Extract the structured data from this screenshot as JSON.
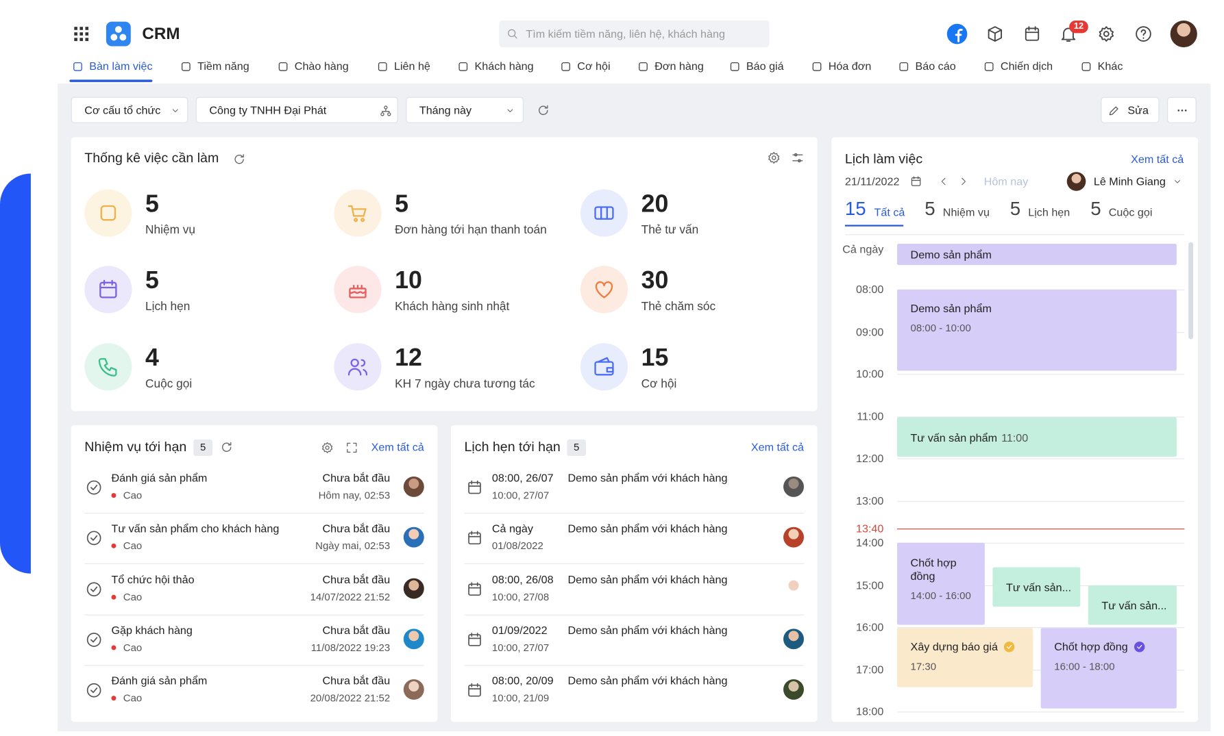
{
  "header": {
    "app_name": "CRM",
    "search_placeholder": "Tìm kiếm tiềm năng, liên hệ, khách hàng",
    "notification_count": 12
  },
  "nav": [
    "Bàn làm việc",
    "Tiềm năng",
    "Chào hàng",
    "Liên hệ",
    "Khách hàng",
    "Cơ hội",
    "Đơn hàng",
    "Báo giá",
    "Hóa đơn",
    "Báo cáo",
    "Chiến dịch",
    "Khác"
  ],
  "filters": {
    "org_structure": "Cơ cấu tổ chức",
    "company": "Công ty TNHH Đại Phát",
    "period": "Tháng này",
    "edit": "Sửa"
  },
  "stats": {
    "title": "Thống kê việc cần làm",
    "items": [
      {
        "value": 5,
        "label": "Nhiệm vụ"
      },
      {
        "value": 5,
        "label": "Đơn hàng tới hạn thanh toán"
      },
      {
        "value": 20,
        "label": "Thẻ tư vấn"
      },
      {
        "value": 5,
        "label": "Lịch hẹn"
      },
      {
        "value": 10,
        "label": "Khách hàng sinh nhật"
      },
      {
        "value": 30,
        "label": "Thẻ chăm sóc"
      },
      {
        "value": 4,
        "label": "Cuộc gọi"
      },
      {
        "value": 12,
        "label": "KH 7 ngày chưa tương tác"
      },
      {
        "value": 15,
        "label": "Cơ hội"
      }
    ]
  },
  "tasks": {
    "title": "Nhiệm vụ tới hạn",
    "count": 5,
    "view_all": "Xem tất cả",
    "rows": [
      {
        "title": "Đánh giá sản phẩm",
        "priority": "Cao",
        "status": "Chưa bắt đầu",
        "due": "Hôm nay, 02:53"
      },
      {
        "title": "Tư vấn sản phẩm cho khách hàng",
        "priority": "Cao",
        "status": "Chưa bắt đầu",
        "due": "Ngày mai, 02:53"
      },
      {
        "title": "Tổ chức hội thảo",
        "priority": "Cao",
        "status": "Chưa bắt đầu",
        "due": "14/07/2022 21:52"
      },
      {
        "title": "Gặp khách hàng",
        "priority": "Cao",
        "status": "Chưa bắt đầu",
        "due": "11/08/2022 19:23"
      },
      {
        "title": "Đánh giá sản phẩm",
        "priority": "Cao",
        "status": "Chưa bắt đầu",
        "due": "20/08/2022 21:52"
      }
    ]
  },
  "appointments": {
    "title": "Lịch hẹn tới hạn",
    "count": 5,
    "view_all": "Xem tất cả",
    "rows": [
      {
        "start": "08:00, 26/07",
        "end": "10:00, 27/07",
        "title": "Demo sản phẩm với khách hàng"
      },
      {
        "start": "Cả ngày",
        "end": "01/08/2022",
        "title": "Demo sản phẩm với khách hàng"
      },
      {
        "start": "08:00, 26/08",
        "end": "10:00, 27/08",
        "title": "Demo sản phẩm với khách hàng"
      },
      {
        "start": "01/09/2022",
        "end": "10:00, 27/07",
        "title": "Demo sản phẩm với khách hàng"
      },
      {
        "start": "08:00, 20/09",
        "end": "10:00, 21/09",
        "title": "Demo sản phẩm với khách hàng"
      }
    ]
  },
  "schedule": {
    "title": "Lịch làm việc",
    "view_all": "Xem tất cả",
    "date": "21/11/2022",
    "today": "Hôm nay",
    "user": "Lê Minh Giang",
    "tabs": [
      {
        "count": 15,
        "label": "Tất cả"
      },
      {
        "count": 5,
        "label": "Nhiệm vụ"
      },
      {
        "count": 5,
        "label": "Lịch hẹn"
      },
      {
        "count": 5,
        "label": "Cuộc gọi"
      }
    ],
    "all_day_label": "Cả ngày",
    "all_day_event": "Demo sản phẩm",
    "hours": [
      "08:00",
      "09:00",
      "10:00",
      "11:00",
      "12:00",
      "13:00",
      "14:00",
      "15:00",
      "16:00",
      "17:00",
      "18:00"
    ],
    "now": "13:40",
    "events": [
      {
        "title": "Demo sản phẩm",
        "time": "08:00 - 10:00"
      },
      {
        "title": "Tư vấn sản phẩm",
        "time": "11:00"
      },
      {
        "title": "Chốt hợp đồng",
        "time": "14:00 - 16:00"
      },
      {
        "title": "Tư vấn sản..."
      },
      {
        "title": "Tư vấn sản..."
      },
      {
        "title": "Xây dựng báo giá",
        "time": "17:30"
      },
      {
        "title": "Chốt hợp đồng",
        "time": "16:00 - 18:00"
      }
    ]
  }
}
